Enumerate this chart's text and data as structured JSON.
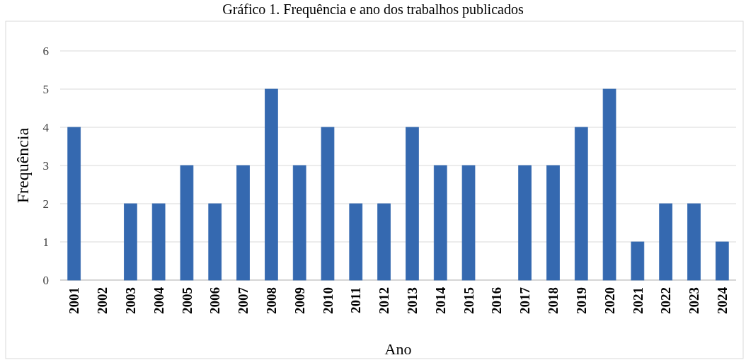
{
  "chart_data": {
    "type": "bar",
    "title": "Gráfico 1. Frequência e ano dos trabalhos publicados",
    "xlabel": "Ano",
    "ylabel": "Frequência",
    "categories": [
      "2001",
      "2002",
      "2003",
      "2004",
      "2005",
      "2006",
      "2007",
      "2008",
      "2009",
      "2010",
      "2011",
      "2012",
      "2013",
      "2014",
      "2015",
      "2016",
      "2017",
      "2018",
      "2019",
      "2020",
      "2021",
      "2022",
      "2023",
      "2024"
    ],
    "values": [
      4,
      0,
      2,
      2,
      3,
      2,
      3,
      5,
      3,
      4,
      2,
      2,
      4,
      3,
      3,
      0,
      3,
      3,
      4,
      5,
      1,
      2,
      2,
      1
    ],
    "color": "#3569b0",
    "ylim": [
      0,
      6
    ],
    "yticks": [
      0,
      1,
      2,
      3,
      4,
      5,
      6
    ],
    "grid": "y"
  }
}
